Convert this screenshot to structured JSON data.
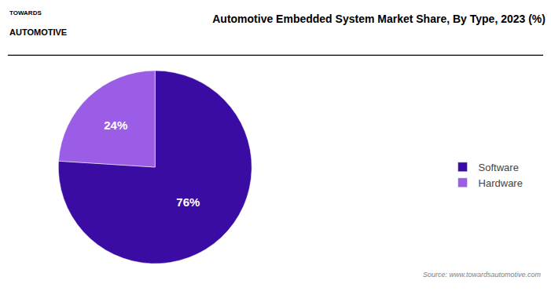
{
  "chart_data": {
    "type": "pie",
    "title": "Automotive Embedded System Market Share, By Type, 2023 (%)",
    "categories": [
      "Software",
      "Hardware"
    ],
    "values": [
      76,
      24
    ],
    "value_labels": [
      "76%",
      "24%"
    ],
    "colors": [
      "#3a0ca3",
      "#9b5de5"
    ],
    "data_labels": true,
    "legend": "right",
    "annotations": [
      "TOWARDS",
      "AUTOMOTIVE",
      "Source: www.towardsautomotive.com"
    ]
  }
}
